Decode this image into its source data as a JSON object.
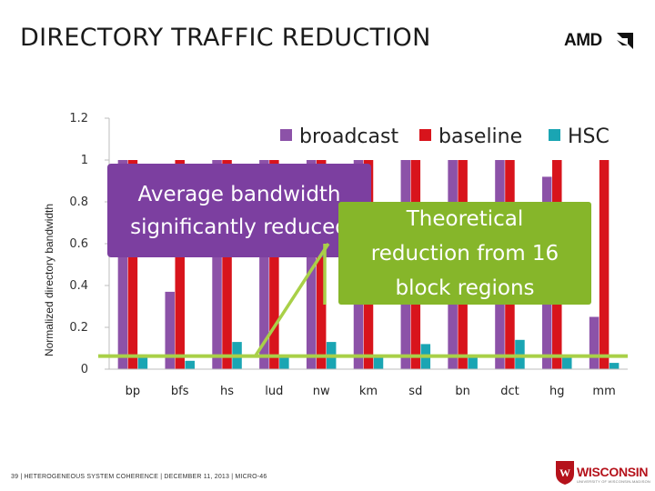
{
  "slide": {
    "title": "DIRECTORY TRAFFIC REDUCTION",
    "footer": "39  |  HETEROGENEOUS SYSTEM COHERENCE  |  DECEMBER 11, 2013  |  MICRO-46",
    "amd_logo_text": "AMD",
    "uw_logo_text": "WISCONSIN",
    "uw_logo_subtext": "UNIVERSITY OF WISCONSIN-MADISON"
  },
  "callouts": {
    "average": [
      "Average bandwidth",
      "significantly reduced"
    ],
    "theoretical": [
      "Theoretical",
      "reduction from 16",
      "block regions"
    ]
  },
  "colors": {
    "broadcast": "#8c52a8",
    "baseline": "#d8141c",
    "hsc": "#1aa5b3",
    "callout_purple": "#7c3fa0",
    "callout_green": "#86b62a",
    "theoretical_line": "#a9d048"
  },
  "chart_data": {
    "type": "bar",
    "title": "",
    "xlabel": "",
    "ylabel": "Normalized directory bandwidth",
    "ylim": [
      0,
      1.2
    ],
    "yticks": [
      "0",
      "0.2",
      "0.4",
      "0.6",
      "0.8",
      "1",
      "1.2"
    ],
    "categories": [
      "bp",
      "bfs",
      "hs",
      "lud",
      "nw",
      "km",
      "sd",
      "bn",
      "dct",
      "hg",
      "mm"
    ],
    "series": [
      {
        "name": "broadcast",
        "values": [
          1.0,
          0.37,
          1.0,
          1.0,
          1.0,
          1.0,
          1.0,
          1.0,
          1.0,
          0.92,
          0.25
        ]
      },
      {
        "name": "baseline",
        "values": [
          1.0,
          1.0,
          1.0,
          1.0,
          1.0,
          1.0,
          1.0,
          1.0,
          1.0,
          1.0,
          1.0
        ]
      },
      {
        "name": "HSC",
        "values": [
          0.07,
          0.04,
          0.13,
          0.06,
          0.13,
          0.06,
          0.12,
          0.06,
          0.14,
          0.06,
          0.03
        ]
      }
    ],
    "theoretical_reduction": 0.0625,
    "legend_position": "top-right",
    "grid": false
  }
}
